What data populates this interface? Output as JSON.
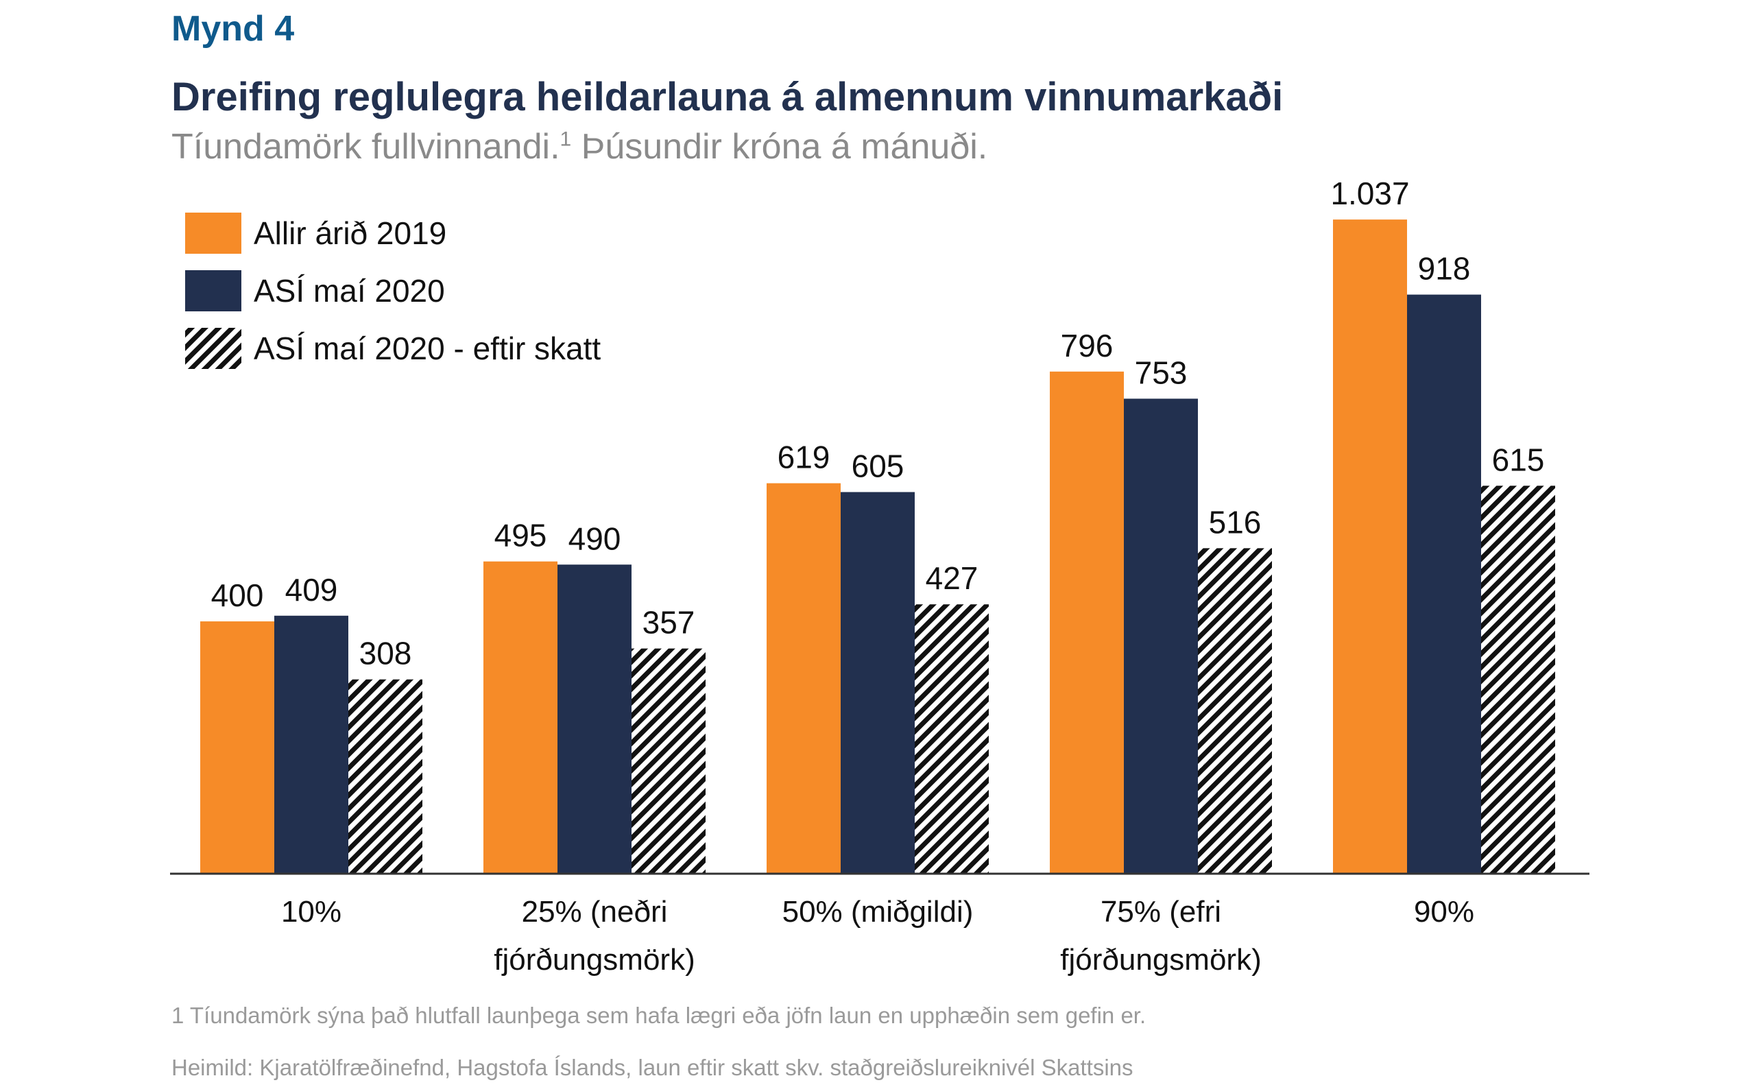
{
  "header": {
    "figure_label": "Mynd 4",
    "title": "Dreifing reglulegra heildarlauna á almennum vinnumarkaði",
    "subtitle": "Tíundamörk fullvinnandi.",
    "subtitle_sup": "1",
    "subtitle_rest": " Þúsundir króna á mánuði."
  },
  "footnotes": {
    "note1": "1 Tíundamörk sýna það hlutfall launþega sem hafa lægri eða jöfn laun en upphæðin sem gefin er.",
    "source": "Heimild: Kjaratölfræðinefnd, Hagstofa Íslands, laun eftir skatt skv. staðgreiðslureiknivél Skattsins"
  },
  "colors": {
    "orange": "#f68b28",
    "navy": "#22304f",
    "hatch": "#111111"
  },
  "chart_data": {
    "type": "bar",
    "categories": [
      [
        "10%"
      ],
      [
        "25% (neðri",
        "fjórðungsmörk)"
      ],
      [
        "50% (miðgildi)"
      ],
      [
        "75% (efri",
        "fjórðungsmörk)"
      ],
      [
        "90%"
      ]
    ],
    "series": [
      {
        "name": "Allir árið 2019",
        "values": [
          400,
          495,
          619,
          796,
          1037
        ],
        "labels": [
          "400",
          "495",
          "619",
          "796",
          "1.037"
        ],
        "style": "orange"
      },
      {
        "name": "ASÍ maí 2020",
        "values": [
          409,
          490,
          605,
          753,
          918
        ],
        "labels": [
          "409",
          "490",
          "605",
          "753",
          "918"
        ],
        "style": "navy"
      },
      {
        "name": "ASÍ maí 2020 - eftir skatt",
        "values": [
          308,
          357,
          427,
          516,
          615
        ],
        "labels": [
          "308",
          "357",
          "427",
          "516",
          "615"
        ],
        "style": "hatch"
      }
    ],
    "ylim": [
      0,
      1100
    ],
    "legend": "top-left",
    "grid": false
  }
}
